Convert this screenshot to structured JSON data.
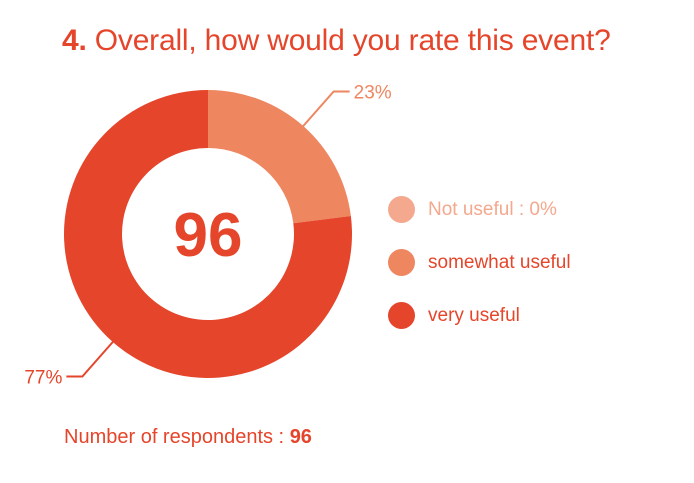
{
  "header": {
    "question_number": "4.",
    "question_text": "Overall, how would you rate this event?"
  },
  "chart_data": {
    "type": "pie",
    "title": "Overall, how would you rate this event?",
    "center_label": "96",
    "categories": [
      "Not useful",
      "somewhat useful",
      "very useful"
    ],
    "values": [
      0,
      23,
      77
    ],
    "unit": "%",
    "slice_labels": [
      "",
      "23%",
      "77%"
    ],
    "colors": [
      "#f4a88e",
      "#ee8660",
      "#e5452a"
    ],
    "legend_position": "right"
  },
  "legend": {
    "items": [
      {
        "label": "Not useful : 0%",
        "color": "#f4a88e",
        "text_color": "#f4a88e"
      },
      {
        "label": "somewhat useful",
        "color": "#ee8660",
        "text_color": "#e5452a"
      },
      {
        "label": "very useful",
        "color": "#e5452a",
        "text_color": "#e5452a"
      }
    ]
  },
  "footer": {
    "label": "Number of respondents : ",
    "count": "96"
  }
}
